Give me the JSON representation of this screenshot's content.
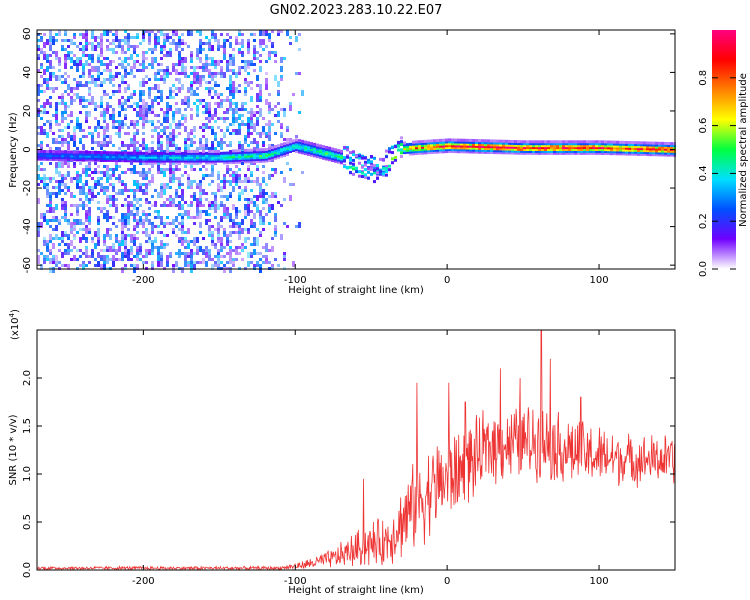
{
  "figure": {
    "title": "GN02.2023.283.10.22.E07"
  },
  "chart_data": [
    {
      "type": "heatmap",
      "xlabel": "Height of straight line (km)",
      "ylabel": "Frequency (Hz)",
      "xlim": [
        -270,
        150
      ],
      "ylim": [
        -62,
        62
      ],
      "x_ticks": [
        -200,
        -100,
        0,
        100
      ],
      "y_ticks": [
        -60,
        -40,
        -20,
        0,
        20,
        40,
        60
      ],
      "colorbar": {
        "label": "Normalized spectral amplitude",
        "range": [
          0,
          1
        ],
        "ticks": [
          0.0,
          0.2,
          0.4,
          0.6,
          0.8
        ],
        "colormap": [
          "#ffffff",
          "#7000ff",
          "#0050ff",
          "#00e0ff",
          "#00ff40",
          "#ffff00",
          "#ff8000",
          "#ff0000",
          "#ff0080"
        ]
      },
      "ridge": [
        {
          "x": -270,
          "f": -3,
          "amp": 0.25
        },
        {
          "x": -200,
          "f": -4,
          "amp": 0.35
        },
        {
          "x": -150,
          "f": -4,
          "amp": 0.45
        },
        {
          "x": -120,
          "f": -3,
          "amp": 0.5
        },
        {
          "x": -100,
          "f": 2,
          "amp": 0.45
        },
        {
          "x": -80,
          "f": -2,
          "amp": 0.5
        },
        {
          "x": -60,
          "f": -6,
          "amp": 0.45
        },
        {
          "x": -45,
          "f": -12,
          "amp": 0.4
        },
        {
          "x": -35,
          "f": 0,
          "amp": 0.55
        },
        {
          "x": -20,
          "f": 1,
          "amp": 0.85
        },
        {
          "x": 0,
          "f": 2,
          "amp": 0.95
        },
        {
          "x": 50,
          "f": 1,
          "amp": 0.95
        },
        {
          "x": 100,
          "f": 1,
          "amp": 0.95
        },
        {
          "x": 150,
          "f": 0,
          "amp": 0.95
        }
      ]
    },
    {
      "type": "line",
      "xlabel": "Height of straight line (km)",
      "ylabel": "SNR (10 * v/v)",
      "y_multiplier": "(x10",
      "y_multiplier_exp": "4",
      "y_multiplier_close": ")",
      "xlim": [
        -270,
        150
      ],
      "ylim": [
        0,
        2.5
      ],
      "x_ticks": [
        -200,
        -100,
        0,
        100
      ],
      "y_ticks": [
        0.0,
        0.5,
        1.0,
        1.5,
        2.0
      ],
      "series": [
        {
          "color": "#ee3333",
          "envelope": [
            {
              "x": -270,
              "base": 0.02,
              "spread": 0.02
            },
            {
              "x": -110,
              "base": 0.02,
              "spread": 0.02
            },
            {
              "x": -95,
              "base": 0.05,
              "spread": 0.05
            },
            {
              "x": -75,
              "base": 0.12,
              "spread": 0.12
            },
            {
              "x": -55,
              "base": 0.25,
              "spread": 0.25
            },
            {
              "x": -40,
              "base": 0.3,
              "spread": 0.3
            },
            {
              "x": -25,
              "base": 0.6,
              "spread": 0.5
            },
            {
              "x": -10,
              "base": 0.85,
              "spread": 0.55
            },
            {
              "x": 10,
              "base": 1.05,
              "spread": 0.5
            },
            {
              "x": 30,
              "base": 1.3,
              "spread": 0.45
            },
            {
              "x": 60,
              "base": 1.35,
              "spread": 0.45
            },
            {
              "x": 90,
              "base": 1.2,
              "spread": 0.4
            },
            {
              "x": 120,
              "base": 1.15,
              "spread": 0.3
            },
            {
              "x": 150,
              "base": 1.15,
              "spread": 0.3
            }
          ],
          "peaks": [
            {
              "x": -55,
              "y": 0.95
            },
            {
              "x": -20,
              "y": 1.95
            },
            {
              "x": 1,
              "y": 1.95
            },
            {
              "x": 12,
              "y": 1.75
            },
            {
              "x": 35,
              "y": 2.1
            },
            {
              "x": 48,
              "y": 2.0
            },
            {
              "x": 62,
              "y": 2.5
            },
            {
              "x": 68,
              "y": 2.2
            },
            {
              "x": 88,
              "y": 1.8
            }
          ]
        }
      ]
    }
  ]
}
